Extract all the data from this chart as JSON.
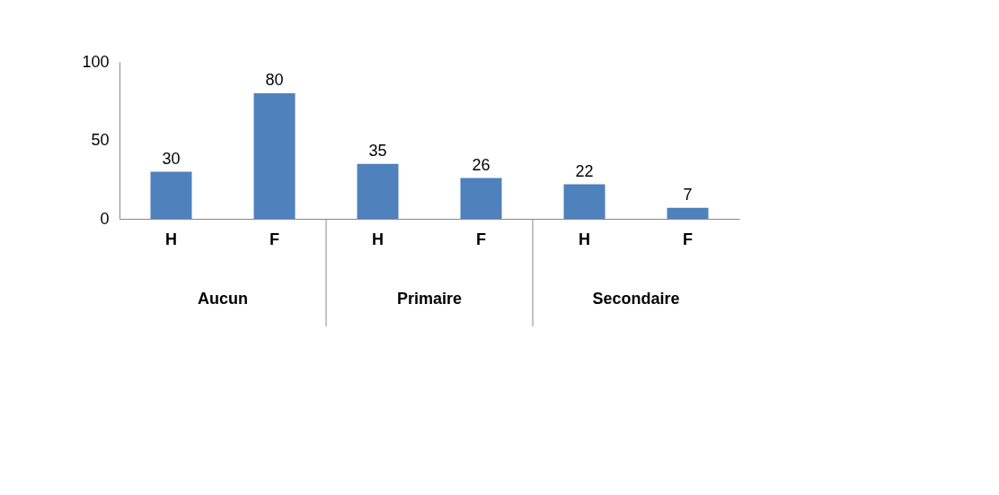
{
  "chart_data": {
    "type": "bar",
    "categories": [
      "H",
      "F",
      "H",
      "F",
      "H",
      "F"
    ],
    "values": [
      30,
      80,
      35,
      26,
      22,
      7
    ],
    "color": "#4f81bd",
    "ylim": [
      0,
      100
    ],
    "yticks": [
      0,
      50,
      100
    ],
    "grid": false,
    "data_labels": true,
    "annotations": [
      "Aucun",
      "Primaire",
      "Secondaire"
    ]
  }
}
